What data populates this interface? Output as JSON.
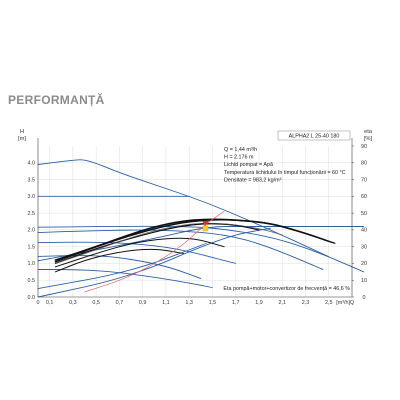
{
  "section_title": "PERFORMANȚĂ",
  "chart_data": {
    "type": "line",
    "title": "",
    "model": "ALPHA2 L 25-40 180",
    "ylabel_left": "H",
    "ylabel_left_unit": "[m]",
    "ylabel_right": "eta",
    "ylabel_right_unit": "[%]",
    "xlabel": "Q",
    "xlabel_unit": "[m³/h]",
    "xlim": [
      0,
      2.7
    ],
    "ylim_left": [
      0,
      4.5
    ],
    "ylim_right": [
      0,
      90
    ],
    "x_ticks": [
      "0",
      "0,1",
      "0,3",
      "0,5",
      "0,7",
      "0,9",
      "1,1",
      "1,3",
      "1,5",
      "1,7",
      "1,9",
      "2,1",
      "2,3",
      "2,5",
      "Q"
    ],
    "x_tick_values": [
      0,
      0.1,
      0.3,
      0.5,
      0.7,
      0.9,
      1.1,
      1.3,
      1.5,
      1.7,
      1.9,
      2.1,
      2.3,
      2.5,
      2.7
    ],
    "y_left_ticks": [
      "0.0",
      "0.5",
      "1.0",
      "1.5",
      "2.0",
      "2.5",
      "3.0",
      "3.5",
      "4.0"
    ],
    "y_left_tick_values": [
      0,
      0.5,
      1.0,
      1.5,
      2.0,
      2.5,
      3.0,
      3.5,
      4.0
    ],
    "y_right_ticks": [
      "0",
      "10",
      "20",
      "30",
      "40",
      "50",
      "60",
      "70",
      "80",
      "90"
    ],
    "y_right_tick_values": [
      0,
      10,
      20,
      30,
      40,
      50,
      60,
      70,
      80,
      90
    ],
    "info_lines": [
      "Q = 1,44  m³/h",
      "H = 2.176 m",
      "Lichid pompat = Apă",
      "Temperatura lichidului în timpul funcționării = 60  °C",
      "Densitate = 983,2  kg/m³"
    ],
    "efficiency_note": "Eta pompă+motor+convertizor de frecvență = 46,6 %",
    "duty_point": {
      "q": 1.44,
      "h": 2.176
    },
    "colors": {
      "blue": "#2a5fa8",
      "black": "#111111",
      "gray": "#555555",
      "red": "#e8666b",
      "axis": "#444444",
      "grid": "#d6d6d6",
      "marker_red": "#e52b2b",
      "marker_yellow": "#ffd21f"
    },
    "series": [
      {
        "style": "blue",
        "width": 0.9,
        "x": [
          0,
          0.3,
          0.42,
          0.7,
          1.0,
          1.3,
          1.6,
          2.0,
          2.5
        ],
        "y": [
          3.95,
          4.08,
          4.1,
          3.7,
          3.35,
          3.0,
          2.6,
          2.0,
          1.2
        ]
      },
      {
        "style": "blue",
        "width": 0.9,
        "x": [
          0,
          0.42,
          0.6,
          0.9,
          1.3
        ],
        "y": [
          3.0,
          3.0,
          3.0,
          3.0,
          3.0
        ]
      },
      {
        "style": "blue",
        "width": 0.9,
        "x": [
          0,
          0.5,
          1.0,
          1.5,
          2.0,
          2.4,
          2.8
        ],
        "y": [
          2.08,
          2.1,
          2.11,
          2.08,
          1.8,
          1.35,
          0.75
        ]
      },
      {
        "style": "blue",
        "width": 0.9,
        "x": [
          0,
          0.4,
          0.8,
          1.2,
          1.6,
          1.95,
          2.45
        ],
        "y": [
          1.92,
          1.97,
          2.0,
          1.98,
          1.87,
          1.55,
          0.82
        ]
      },
      {
        "style": "blue",
        "width": 0.9,
        "x": [
          0,
          0.4,
          0.8,
          1.2,
          1.7
        ],
        "y": [
          1.62,
          1.64,
          1.6,
          1.45,
          1.0
        ]
      },
      {
        "style": "blue",
        "width": 0.9,
        "x": [
          0,
          0.3,
          0.6,
          0.9,
          1.15,
          1.4
        ],
        "y": [
          1.21,
          1.24,
          1.22,
          1.07,
          0.87,
          0.55
        ]
      },
      {
        "style": "blue",
        "width": 0.9,
        "x": [
          0,
          0.3,
          0.6,
          0.9,
          1.2,
          1.5
        ],
        "y": [
          0.82,
          0.82,
          0.77,
          0.64,
          0.48,
          0.28
        ]
      },
      {
        "style": "blue",
        "width": 0.9,
        "x": [
          0,
          0.5,
          1.0,
          1.45,
          1.8,
          2.3,
          2.8
        ],
        "y": [
          1.08,
          1.4,
          1.74,
          2.1,
          2.1,
          2.1,
          2.1
        ]
      },
      {
        "style": "blue",
        "width": 0.9,
        "x": [
          0,
          0.8,
          1.45
        ],
        "y": [
          0.25,
          0.75,
          1.6
        ]
      },
      {
        "style": "blue",
        "width": 0.9,
        "x": [
          0,
          0.8,
          1.6,
          2.0
        ],
        "y": [
          0.0,
          0.6,
          1.8,
          2.05
        ]
      },
      {
        "style": "black",
        "width": 1.6,
        "x": [
          0.15,
          0.5,
          0.9,
          1.2,
          1.45,
          1.7,
          2.0,
          2.3,
          2.55
        ],
        "y": [
          22,
          30,
          40,
          45,
          46.5,
          46,
          44,
          38,
          32
        ]
      },
      {
        "style": "black",
        "width": 1.4,
        "x": [
          0.15,
          0.5,
          0.9,
          1.2,
          1.45,
          1.7,
          2.0,
          2.2
        ],
        "y": [
          21,
          30,
          39,
          44,
          46,
          46,
          44,
          40
        ]
      },
      {
        "style": "black",
        "width": 1.2,
        "x": [
          0.15,
          0.5,
          0.9,
          1.2,
          1.45,
          1.7,
          1.9
        ],
        "y": [
          20,
          29,
          37,
          42,
          44,
          43,
          40
        ]
      },
      {
        "style": "black",
        "width": 1.0,
        "x": [
          0.15,
          0.5,
          0.8,
          1.1,
          1.35,
          1.6
        ],
        "y": [
          18,
          26,
          32,
          35,
          35,
          30
        ]
      },
      {
        "style": "black",
        "width": 1.0,
        "x": [
          0.15,
          0.4,
          0.7,
          1.0,
          1.25
        ],
        "y": [
          15,
          22,
          27,
          29,
          26
        ]
      },
      {
        "style": "gray",
        "width": 0.7,
        "x": [
          0.15,
          0.5,
          0.9,
          1.3,
          1.6,
          1.9,
          2.1
        ],
        "y": [
          20,
          28,
          38,
          44,
          44,
          41,
          37
        ]
      },
      {
        "style": "red",
        "width": 0.7,
        "x": [
          0.4,
          0.8,
          1.2,
          1.44,
          1.6
        ],
        "y": [
          0.15,
          0.6,
          1.4,
          2.176,
          2.55
        ]
      }
    ],
    "series_axes": [
      "left",
      "left",
      "left",
      "left",
      "left",
      "left",
      "left",
      "left",
      "left",
      "left",
      "right",
      "right",
      "right",
      "right",
      "right",
      "right",
      "left"
    ]
  }
}
